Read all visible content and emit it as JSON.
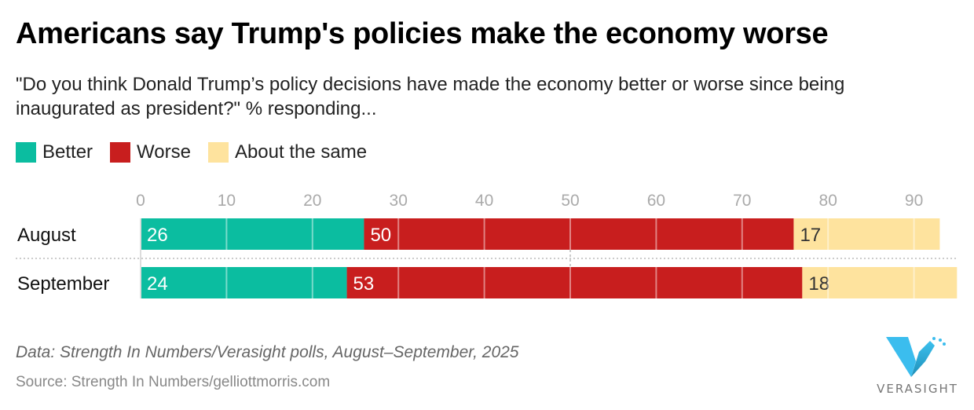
{
  "title": "Americans say Trump's policies make the economy worse",
  "subtitle": "\"Do you think Donald Trump’s policy decisions have made the economy better or worse since being inaugurated as president?\" % responding...",
  "legend": [
    {
      "label": "Better",
      "color": "#0bbda0"
    },
    {
      "label": "Worse",
      "color": "#c81e1e"
    },
    {
      "label": "About the same",
      "color": "#fee39e"
    }
  ],
  "chart_data": {
    "type": "bar",
    "orientation": "horizontal",
    "stacked": true,
    "categories": [
      "August",
      "September"
    ],
    "series": [
      {
        "name": "Better",
        "values": [
          26,
          24
        ],
        "color": "#0bbda0",
        "label_color": "#ffffff"
      },
      {
        "name": "Worse",
        "values": [
          50,
          53
        ],
        "color": "#c81e1e",
        "label_color": "#ffffff"
      },
      {
        "name": "About the same",
        "values": [
          17,
          18
        ],
        "color": "#fee39e",
        "label_color": "#333333"
      }
    ],
    "xticks": [
      0,
      10,
      20,
      30,
      40,
      50,
      60,
      70,
      80,
      90
    ],
    "xlim": [
      0,
      95
    ],
    "xticks_position": "top",
    "grid": true
  },
  "notes": "Data: Strength In Numbers/Verasight polls, August–September, 2025",
  "source": "Source: Strength In Numbers/gelliottmorris.com",
  "logo_text": "VERASIGHT"
}
